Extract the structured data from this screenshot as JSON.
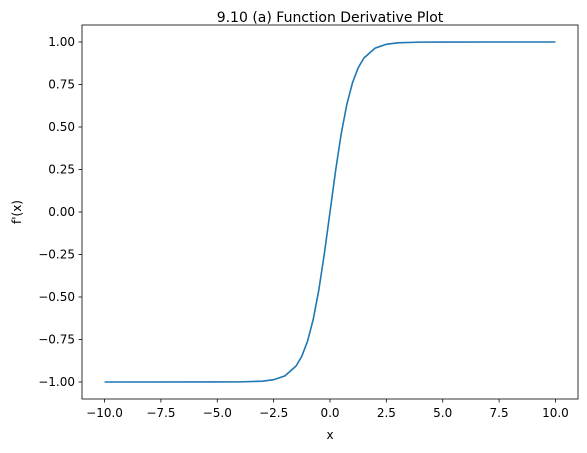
{
  "chart_data": {
    "type": "line",
    "title": "9.10 (a) Function Derivative Plot",
    "xlabel": "x",
    "ylabel": "f'(x)",
    "xlim": [
      -11.0,
      11.0
    ],
    "ylim": [
      -1.1,
      1.1
    ],
    "xticks": [
      -10.0,
      -7.5,
      -5.0,
      -2.5,
      0.0,
      2.5,
      5.0,
      7.5,
      10.0
    ],
    "yticks": [
      -1.0,
      -0.75,
      -0.5,
      -0.25,
      0.0,
      0.25,
      0.5,
      0.75,
      1.0
    ],
    "xtick_labels": [
      "−10.0",
      "−7.5",
      "−5.0",
      "−2.5",
      "0.0",
      "2.5",
      "5.0",
      "7.5",
      "10.0"
    ],
    "ytick_labels": [
      "−1.00",
      "−0.75",
      "−0.50",
      "−0.25",
      "0.00",
      "0.25",
      "0.50",
      "0.75",
      "1.00"
    ],
    "grid": false,
    "series": [
      {
        "color": "#1f77b4",
        "x": [
          -10,
          -5,
          -4,
          -3,
          -2.5,
          -2,
          -1.5,
          -1.25,
          -1,
          -0.75,
          -0.5,
          -0.25,
          0,
          0.25,
          0.5,
          0.75,
          1,
          1.25,
          1.5,
          2,
          2.5,
          3,
          4,
          5,
          10
        ],
        "y": [
          -1.0,
          -0.9999,
          -0.9993,
          -0.9951,
          -0.9866,
          -0.964,
          -0.9051,
          -0.8483,
          -0.7616,
          -0.6351,
          -0.4621,
          -0.2449,
          0.0,
          0.2449,
          0.4621,
          0.6351,
          0.7616,
          0.8483,
          0.9051,
          0.964,
          0.9866,
          0.9951,
          0.9993,
          0.9999,
          1.0
        ]
      }
    ]
  }
}
